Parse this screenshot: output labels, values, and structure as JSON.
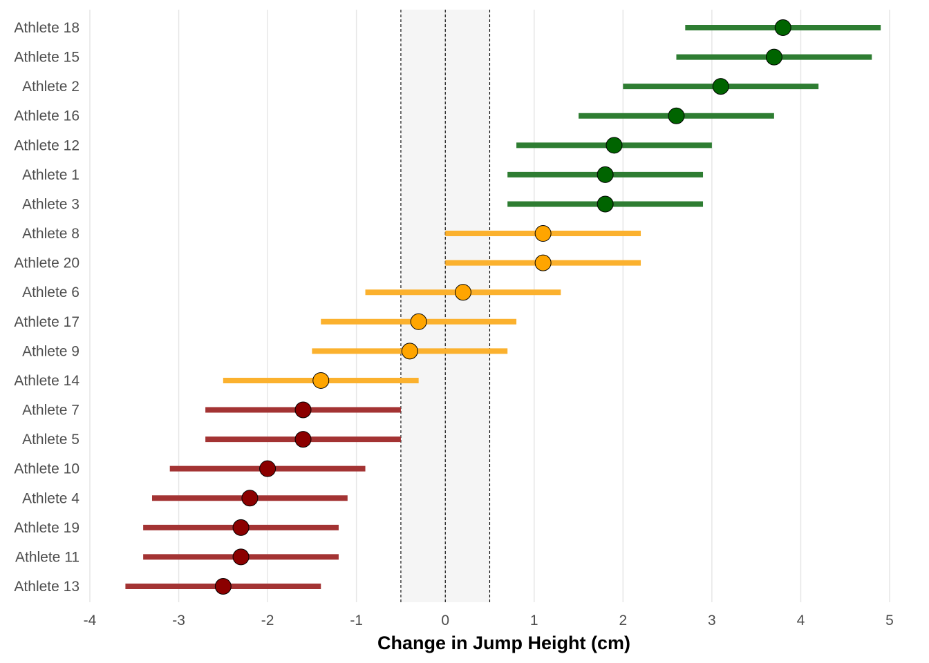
{
  "chart_data": {
    "type": "forest",
    "title": "",
    "xlabel": "Change in Jump Height (cm)",
    "ylabel": "",
    "xlim": [
      -4,
      5
    ],
    "xticks": [
      -4,
      -3,
      -2,
      -1,
      0,
      1,
      2,
      3,
      4,
      5
    ],
    "grid": "vertical major",
    "reference_band": [
      -0.5,
      0.5
    ],
    "reference_lines": [
      -0.5,
      0,
      0.5
    ],
    "colors": {
      "positive_line": "#2e7d32",
      "positive_point": "#006400",
      "neutral_line": "#fbb12e",
      "neutral_point": "#ffa500",
      "negative_line": "#a33333",
      "negative_point": "#8b0000",
      "band": "#f5f5f5",
      "grid": "#e6e6e6"
    },
    "points": [
      {
        "label": "Athlete 18",
        "estimate": 3.8,
        "lower": 2.7,
        "upper": 4.9,
        "group": "positive"
      },
      {
        "label": "Athlete 15",
        "estimate": 3.7,
        "lower": 2.6,
        "upper": 4.8,
        "group": "positive"
      },
      {
        "label": "Athlete 2",
        "estimate": 3.1,
        "lower": 2.0,
        "upper": 4.2,
        "group": "positive"
      },
      {
        "label": "Athlete 16",
        "estimate": 2.6,
        "lower": 1.5,
        "upper": 3.7,
        "group": "positive"
      },
      {
        "label": "Athlete 12",
        "estimate": 1.9,
        "lower": 0.8,
        "upper": 3.0,
        "group": "positive"
      },
      {
        "label": "Athlete 1",
        "estimate": 1.8,
        "lower": 0.7,
        "upper": 2.9,
        "group": "positive"
      },
      {
        "label": "Athlete 3",
        "estimate": 1.8,
        "lower": 0.7,
        "upper": 2.9,
        "group": "positive"
      },
      {
        "label": "Athlete 8",
        "estimate": 1.1,
        "lower": 0.0,
        "upper": 2.2,
        "group": "neutral"
      },
      {
        "label": "Athlete 20",
        "estimate": 1.1,
        "lower": 0.0,
        "upper": 2.2,
        "group": "neutral"
      },
      {
        "label": "Athlete 6",
        "estimate": 0.2,
        "lower": -0.9,
        "upper": 1.3,
        "group": "neutral"
      },
      {
        "label": "Athlete 17",
        "estimate": -0.3,
        "lower": -1.4,
        "upper": 0.8,
        "group": "neutral"
      },
      {
        "label": "Athlete 9",
        "estimate": -0.4,
        "lower": -1.5,
        "upper": 0.7,
        "group": "neutral"
      },
      {
        "label": "Athlete 14",
        "estimate": -1.4,
        "lower": -2.5,
        "upper": -0.3,
        "group": "neutral"
      },
      {
        "label": "Athlete 7",
        "estimate": -1.6,
        "lower": -2.7,
        "upper": -0.5,
        "group": "negative"
      },
      {
        "label": "Athlete 5",
        "estimate": -1.6,
        "lower": -2.7,
        "upper": -0.5,
        "group": "negative"
      },
      {
        "label": "Athlete 10",
        "estimate": -2.0,
        "lower": -3.1,
        "upper": -0.9,
        "group": "negative"
      },
      {
        "label": "Athlete 4",
        "estimate": -2.2,
        "lower": -3.3,
        "upper": -1.1,
        "group": "negative"
      },
      {
        "label": "Athlete 19",
        "estimate": -2.3,
        "lower": -3.4,
        "upper": -1.2,
        "group": "negative"
      },
      {
        "label": "Athlete 11",
        "estimate": -2.3,
        "lower": -3.4,
        "upper": -1.2,
        "group": "negative"
      },
      {
        "label": "Athlete 13",
        "estimate": -2.5,
        "lower": -3.6,
        "upper": -1.4,
        "group": "negative"
      }
    ]
  }
}
